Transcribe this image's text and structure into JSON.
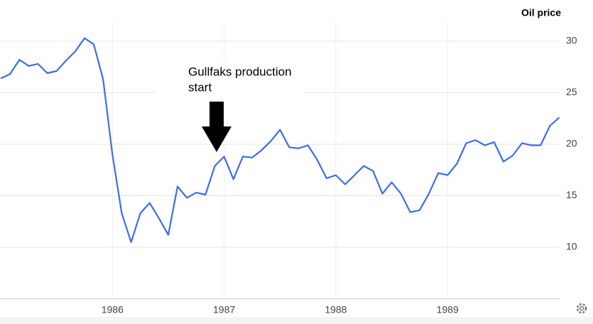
{
  "chart_data": {
    "type": "line",
    "title": "Oil price",
    "annotation": [
      "Gullfaks production",
      "start"
    ],
    "x": [
      1985,
      1985.083,
      1985.167,
      1985.25,
      1985.333,
      1985.417,
      1985.5,
      1985.583,
      1985.667,
      1985.75,
      1985.833,
      1985.917,
      1986,
      1986.083,
      1986.167,
      1986.25,
      1986.333,
      1986.417,
      1986.5,
      1986.583,
      1986.667,
      1986.75,
      1986.833,
      1986.917,
      1987,
      1987.083,
      1987.167,
      1987.25,
      1987.333,
      1987.417,
      1987.5,
      1987.583,
      1987.667,
      1987.75,
      1987.833,
      1987.917,
      1988,
      1988.083,
      1988.167,
      1988.25,
      1988.333,
      1988.417,
      1988.5,
      1988.583,
      1988.667,
      1988.75,
      1988.833,
      1988.917,
      1989,
      1989.083,
      1989.167,
      1989.25,
      1989.333,
      1989.417,
      1989.5,
      1989.583,
      1989.667,
      1989.75,
      1989.833,
      1989.917,
      1990
    ],
    "series": [
      {
        "name": "Oil price",
        "color": "#3b6ee8",
        "values": [
          26.4,
          26.8,
          28.2,
          27.6,
          27.8,
          26.9,
          27.1,
          28.1,
          29.0,
          30.3,
          29.7,
          26.3,
          19.0,
          13.3,
          10.5,
          13.3,
          14.3,
          12.8,
          11.2,
          15.9,
          14.8,
          15.3,
          15.1,
          17.9,
          18.8,
          16.6,
          18.8,
          18.7,
          19.4,
          20.3,
          21.4,
          19.7,
          19.6,
          19.9,
          18.5,
          16.7,
          17.0,
          16.1,
          17.0,
          17.9,
          17.4,
          15.2,
          16.3,
          15.2,
          13.4,
          13.6,
          15.2,
          17.2,
          17.0,
          18.1,
          20.1,
          20.4,
          19.9,
          20.2,
          18.3,
          18.9,
          20.1,
          19.9,
          19.9,
          21.8,
          22.6
        ]
      }
    ],
    "xlim": [
      1985,
      1990
    ],
    "xticks": [
      1986,
      1987,
      1988,
      1989
    ],
    "ylim": [
      5,
      31
    ],
    "yticks": [
      10,
      15,
      20,
      25,
      30
    ],
    "grid": true
  }
}
